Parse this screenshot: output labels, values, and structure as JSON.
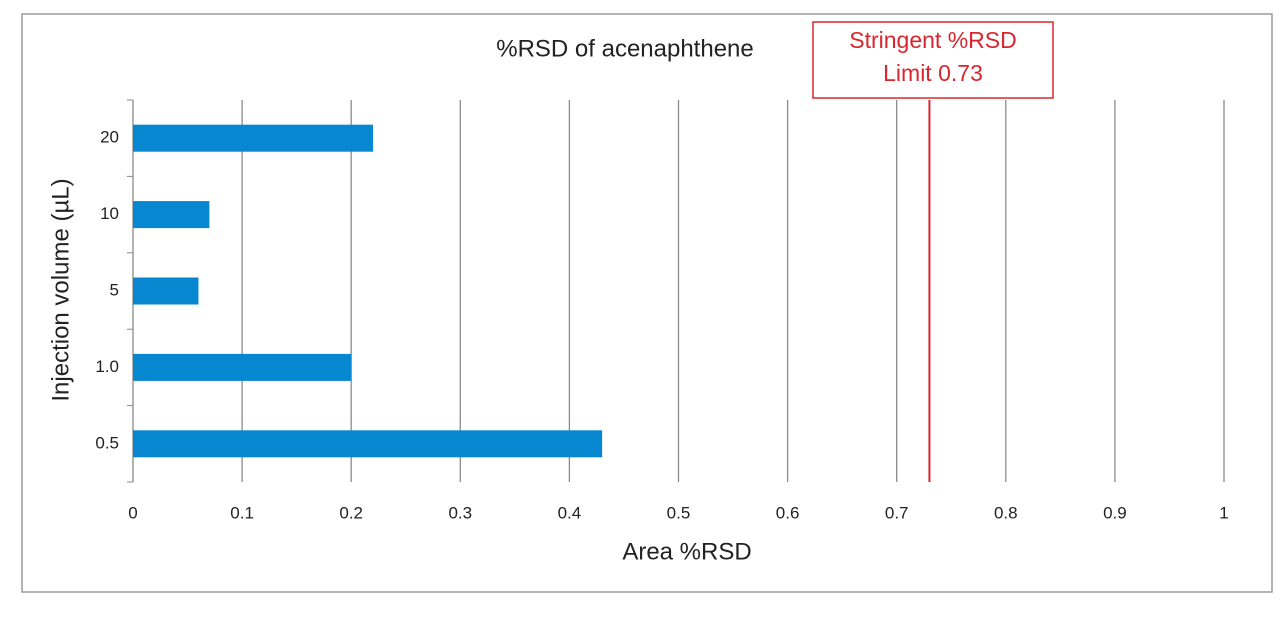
{
  "chart_data": {
    "type": "barh",
    "title": "%RSD of acenaphthene",
    "x_label": "Area %RSD",
    "y_label": "Injection volume (µL)",
    "categories": [
      "0.5",
      "1.0",
      "5",
      "10",
      "20"
    ],
    "values": [
      0.43,
      0.2,
      0.06,
      0.07,
      0.22
    ],
    "color": "#0787cf",
    "xlim": [
      0,
      1
    ],
    "xticks": [
      0,
      0.1,
      0.2,
      0.3,
      0.4,
      0.5,
      0.6,
      0.7,
      0.8,
      0.9,
      1
    ],
    "grid": true,
    "reference_line": {
      "value": 0.73,
      "color": "#d9262e",
      "text": [
        "Stringent %RSD",
        "Limit 0.73"
      ]
    }
  }
}
